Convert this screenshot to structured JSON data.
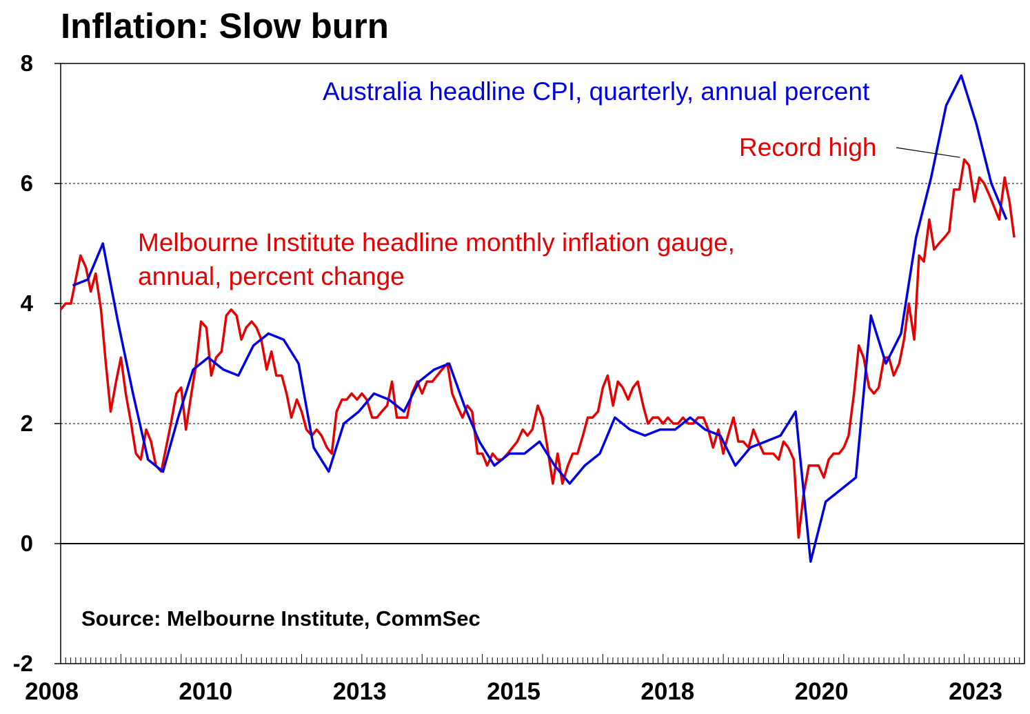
{
  "title": "Inflation: Slow burn",
  "chart_data": {
    "type": "line",
    "title": "Inflation: Slow burn",
    "ylim": [
      -2,
      8
    ],
    "y_ticks": [
      "8",
      "6",
      "4",
      "2",
      "0",
      "-2"
    ],
    "x_range": [
      2008.0,
      2024.0
    ],
    "x_tick_labels": [
      "2008",
      "2010",
      "2013",
      "2015",
      "2018",
      "2020",
      "2023"
    ],
    "grid": "horizontal dashed",
    "source": "Source: Melbourne Institute, CommSec",
    "annotations": {
      "cpi_label": "Australia headline CPI, quarterly, annual percent",
      "mi_label_line1": "Melbourne Institute headline monthly inflation gauge,",
      "mi_label_line2": "annual, percent change",
      "record_high": "Record high"
    },
    "series": [
      {
        "key": "cpi",
        "color": "#0000e6",
        "x": [
          2008.2,
          2008.45,
          2008.7,
          2008.95,
          2009.2,
          2009.45,
          2009.7,
          2009.95,
          2010.2,
          2010.45,
          2010.7,
          2010.95,
          2011.2,
          2011.45,
          2011.7,
          2011.95,
          2012.2,
          2012.45,
          2012.7,
          2012.95,
          2013.2,
          2013.45,
          2013.7,
          2013.95,
          2014.2,
          2014.45,
          2014.7,
          2014.95,
          2015.2,
          2015.45,
          2015.7,
          2015.95,
          2016.2,
          2016.45,
          2016.7,
          2016.95,
          2017.2,
          2017.45,
          2017.7,
          2017.95,
          2018.2,
          2018.45,
          2018.7,
          2018.95,
          2019.2,
          2019.45,
          2019.7,
          2019.95,
          2020.2,
          2020.45,
          2020.7,
          2020.95,
          2021.2,
          2021.45,
          2021.7,
          2021.95,
          2022.2,
          2022.45,
          2022.7,
          2022.95,
          2023.2,
          2023.45,
          2023.7
        ],
        "y": [
          4.3,
          4.4,
          5.0,
          3.7,
          2.5,
          1.4,
          1.2,
          2.1,
          2.9,
          3.1,
          2.9,
          2.8,
          3.3,
          3.5,
          3.4,
          3.0,
          1.6,
          1.2,
          2.0,
          2.2,
          2.5,
          2.4,
          2.2,
          2.7,
          2.9,
          3.0,
          2.3,
          1.7,
          1.3,
          1.5,
          1.5,
          1.7,
          1.3,
          1.0,
          1.3,
          1.5,
          2.1,
          1.9,
          1.8,
          1.9,
          1.9,
          2.1,
          1.9,
          1.8,
          1.3,
          1.6,
          1.7,
          1.8,
          2.2,
          -0.3,
          0.7,
          0.9,
          1.1,
          3.8,
          3.0,
          3.5,
          5.1,
          6.1,
          7.3,
          7.8,
          7.0,
          6.0,
          5.4
        ]
      },
      {
        "key": "mi",
        "color": "#e60000",
        "x": [
          2008.0,
          2008.08,
          2008.17,
          2008.25,
          2008.33,
          2008.42,
          2008.5,
          2008.58,
          2008.67,
          2008.75,
          2008.83,
          2008.92,
          2009.0,
          2009.08,
          2009.17,
          2009.25,
          2009.33,
          2009.42,
          2009.5,
          2009.58,
          2009.67,
          2009.75,
          2009.83,
          2009.92,
          2010.0,
          2010.08,
          2010.17,
          2010.25,
          2010.33,
          2010.42,
          2010.5,
          2010.58,
          2010.67,
          2010.75,
          2010.83,
          2010.92,
          2011.0,
          2011.08,
          2011.17,
          2011.25,
          2011.33,
          2011.42,
          2011.5,
          2011.58,
          2011.67,
          2011.75,
          2011.83,
          2011.92,
          2012.0,
          2012.08,
          2012.17,
          2012.25,
          2012.33,
          2012.42,
          2012.5,
          2012.58,
          2012.67,
          2012.75,
          2012.83,
          2012.92,
          2013.0,
          2013.08,
          2013.17,
          2013.25,
          2013.33,
          2013.42,
          2013.5,
          2013.58,
          2013.67,
          2013.75,
          2013.83,
          2013.92,
          2014.0,
          2014.08,
          2014.17,
          2014.25,
          2014.33,
          2014.42,
          2014.5,
          2014.58,
          2014.67,
          2014.75,
          2014.83,
          2014.92,
          2015.0,
          2015.08,
          2015.17,
          2015.25,
          2015.33,
          2015.42,
          2015.5,
          2015.58,
          2015.67,
          2015.75,
          2015.83,
          2015.92,
          2016.0,
          2016.08,
          2016.17,
          2016.25,
          2016.33,
          2016.42,
          2016.5,
          2016.58,
          2016.67,
          2016.75,
          2016.83,
          2016.92,
          2017.0,
          2017.08,
          2017.17,
          2017.25,
          2017.33,
          2017.42,
          2017.5,
          2017.58,
          2017.67,
          2017.75,
          2017.83,
          2017.92,
          2018.0,
          2018.08,
          2018.17,
          2018.25,
          2018.33,
          2018.42,
          2018.5,
          2018.58,
          2018.67,
          2018.75,
          2018.83,
          2018.92,
          2019.0,
          2019.08,
          2019.17,
          2019.25,
          2019.33,
          2019.42,
          2019.5,
          2019.58,
          2019.67,
          2019.75,
          2019.83,
          2019.92,
          2020.0,
          2020.08,
          2020.17,
          2020.25,
          2020.33,
          2020.42,
          2020.5,
          2020.58,
          2020.67,
          2020.75,
          2020.83,
          2020.92,
          2021.0,
          2021.08,
          2021.17,
          2021.25,
          2021.33,
          2021.42,
          2021.5,
          2021.58,
          2021.67,
          2021.75,
          2021.83,
          2021.92,
          2022.0,
          2022.08,
          2022.17,
          2022.25,
          2022.33,
          2022.42,
          2022.5,
          2022.58,
          2022.67,
          2022.75,
          2022.83,
          2022.92,
          2023.0,
          2023.08,
          2023.17,
          2023.25,
          2023.33,
          2023.42,
          2023.5,
          2023.58,
          2023.67,
          2023.75,
          2023.83
        ],
        "y": [
          3.9,
          4.0,
          4.0,
          4.4,
          4.8,
          4.6,
          4.2,
          4.5,
          3.9,
          3.0,
          2.2,
          2.7,
          3.1,
          2.5,
          2.0,
          1.5,
          1.4,
          1.9,
          1.7,
          1.3,
          1.2,
          1.6,
          2.0,
          2.5,
          2.6,
          1.9,
          2.5,
          3.0,
          3.7,
          3.6,
          2.8,
          3.1,
          3.2,
          3.8,
          3.9,
          3.8,
          3.4,
          3.6,
          3.7,
          3.6,
          3.4,
          2.9,
          3.2,
          2.8,
          2.8,
          2.5,
          2.1,
          2.4,
          2.2,
          1.9,
          1.8,
          1.9,
          1.8,
          1.6,
          1.5,
          2.2,
          2.4,
          2.4,
          2.5,
          2.4,
          2.5,
          2.4,
          2.1,
          2.1,
          2.2,
          2.3,
          2.7,
          2.1,
          2.1,
          2.1,
          2.5,
          2.7,
          2.5,
          2.7,
          2.7,
          2.8,
          2.9,
          3.0,
          2.5,
          2.3,
          2.1,
          2.3,
          2.2,
          1.5,
          1.5,
          1.3,
          1.5,
          1.4,
          1.4,
          1.5,
          1.6,
          1.7,
          1.9,
          1.8,
          1.9,
          2.3,
          2.1,
          1.6,
          1.0,
          1.5,
          1.0,
          1.3,
          1.5,
          1.5,
          1.8,
          2.1,
          2.1,
          2.2,
          2.6,
          2.8,
          2.3,
          2.7,
          2.6,
          2.4,
          2.6,
          2.7,
          2.3,
          2.0,
          2.1,
          2.1,
          2.0,
          2.1,
          2.0,
          2.0,
          2.1,
          2.0,
          2.0,
          2.1,
          2.1,
          1.9,
          1.6,
          1.9,
          1.5,
          1.8,
          2.1,
          1.7,
          1.7,
          1.6,
          1.9,
          1.7,
          1.5,
          1.5,
          1.5,
          1.4,
          1.7,
          1.6,
          1.4,
          0.1,
          0.8,
          1.3,
          1.3,
          1.3,
          1.1,
          1.4,
          1.5,
          1.5,
          1.6,
          1.8,
          2.5,
          3.3,
          3.1,
          2.6,
          2.5,
          2.6,
          3.1,
          3.1,
          2.8,
          3.0,
          3.4,
          4.0,
          3.4,
          4.8,
          4.7,
          5.4,
          4.9,
          5.0,
          5.1,
          5.2,
          5.9,
          5.9,
          6.4,
          6.3,
          5.7,
          6.1,
          6.0,
          5.8,
          5.6,
          5.4,
          6.1,
          5.7,
          5.1
        ]
      }
    ]
  }
}
